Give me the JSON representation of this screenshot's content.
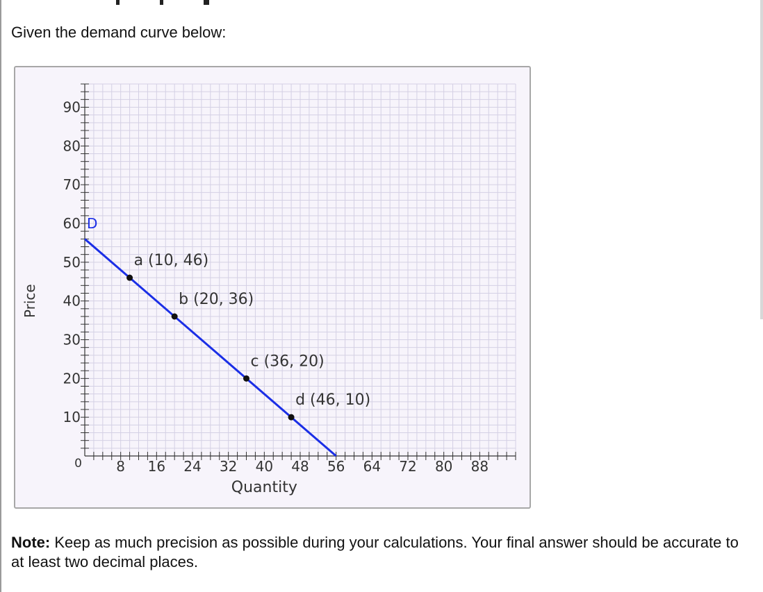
{
  "prompt": "Given the demand curve below:",
  "note": {
    "label": "Note:",
    "text": " Keep as much precision as possible during your calculations. Your final answer should be accurate to at least two decimal places."
  },
  "colors": {
    "curve": "#1a2ee6",
    "grid": "#d4d0e4",
    "panel": "#f7f4fb",
    "point": "#111111"
  },
  "chart_data": {
    "type": "line",
    "xlabel": "Quantity",
    "ylabel": "Price",
    "xlim": [
      0,
      96
    ],
    "ylim": [
      0,
      96
    ],
    "x_ticks": [
      "8",
      "16",
      "24",
      "32",
      "40",
      "48",
      "56",
      "64",
      "72",
      "80",
      "88"
    ],
    "y_ticks": [
      "10",
      "20",
      "30",
      "40",
      "50",
      "60",
      "70",
      "80",
      "90"
    ],
    "origin_label": "0",
    "grid": true,
    "series": [
      {
        "name": "D",
        "x": [
          0,
          56
        ],
        "y": [
          56,
          0
        ]
      }
    ],
    "points": [
      {
        "label": "a (10, 46)",
        "x": 10,
        "y": 46
      },
      {
        "label": "b (20, 36)",
        "x": 20,
        "y": 36
      },
      {
        "label": "c (36, 20)",
        "x": 36,
        "y": 20
      },
      {
        "label": "d (46, 10)",
        "x": 46,
        "y": 10
      }
    ]
  }
}
